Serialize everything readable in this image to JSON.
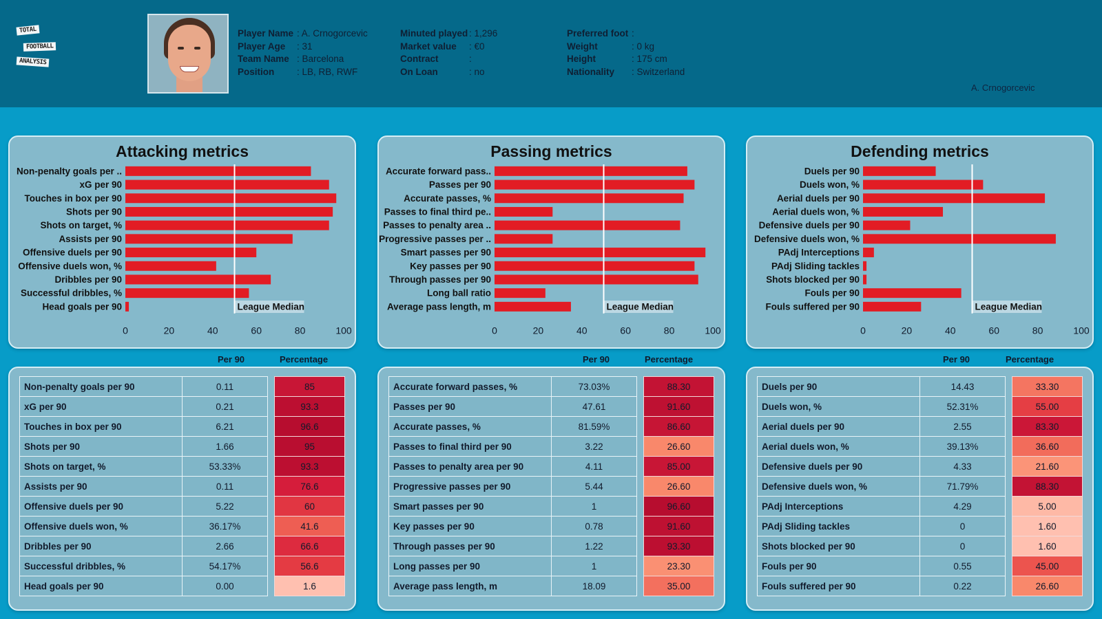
{
  "header": {
    "logo": {
      "lines": [
        "TOTAL",
        "FOOTBALL",
        "ANALYSIS"
      ]
    },
    "player_col1": [
      {
        "label": "Player Name",
        "value": ": A. Crnogorcevic"
      },
      {
        "label": "Player Age",
        "value": ": 31"
      },
      {
        "label": "Team Name",
        "value": ": Barcelona"
      },
      {
        "label": "Position",
        "value": ": LB, RB, RWF"
      }
    ],
    "player_col2": [
      {
        "label": "Minuted played",
        "value": ": 1,296"
      },
      {
        "label": "Market value",
        "value": ": €0"
      },
      {
        "label": "Contract",
        "value": ":"
      },
      {
        "label": "On Loan",
        "value": ": no"
      }
    ],
    "player_col3": [
      {
        "label": "Preferred foot",
        "value": ":"
      },
      {
        "label": "Weight",
        "value": ": 0 kg"
      },
      {
        "label": "Height",
        "value": ": 175 cm"
      },
      {
        "label": "Nationality",
        "value": ": Switzerland"
      }
    ],
    "player_tag": "A. Crnogorcevic"
  },
  "colors": {
    "bar": "#e21c24",
    "median_line": "#ffffff",
    "panel_bg": "#85b9cb",
    "header_bg": "#05698a",
    "page_bg": "#079cc8"
  },
  "table_headers": {
    "per90": "Per 90",
    "percentage": "Percentage"
  },
  "chart_data": [
    {
      "type": "bar",
      "orientation": "horizontal",
      "title": "Attacking metrics",
      "categories": [
        "Non-penalty goals per ..",
        "xG per 90",
        "Touches in box per 90",
        "Shots per 90",
        "Shots on target, %",
        "Assists per 90",
        "Offensive duels per 90",
        "Offensive duels won, %",
        "Dribbles per 90",
        "Successful dribbles, %",
        "Head goals per 90"
      ],
      "values": [
        85,
        93.3,
        96.6,
        95,
        93.3,
        76.6,
        60,
        41.6,
        66.6,
        56.6,
        1.6
      ],
      "xlim": [
        0,
        100
      ],
      "xticks": [
        0,
        20,
        40,
        60,
        80,
        100
      ],
      "reference_line": {
        "value": 50,
        "label": "League Median"
      },
      "xlabel": "",
      "ylabel": ""
    },
    {
      "type": "bar",
      "orientation": "horizontal",
      "title": "Passing metrics",
      "categories": [
        "Accurate forward pass..",
        "Passes per 90",
        "Accurate passes, %",
        "Passes to final third pe..",
        "Passes to penalty area ..",
        "Progressive passes per ..",
        "Smart passes per 90",
        "Key passes per 90",
        "Through passes per 90",
        "Long ball ratio",
        "Average pass length, m"
      ],
      "values": [
        88.3,
        91.6,
        86.6,
        26.6,
        85.0,
        26.6,
        96.6,
        91.6,
        93.3,
        23.3,
        35.0
      ],
      "xlim": [
        0,
        100
      ],
      "xticks": [
        0,
        20,
        40,
        60,
        80,
        100
      ],
      "reference_line": {
        "value": 50,
        "label": "League Median"
      },
      "xlabel": "",
      "ylabel": ""
    },
    {
      "type": "bar",
      "orientation": "horizontal",
      "title": "Defending metrics",
      "categories": [
        "Duels per 90",
        "Duels won, %",
        "Aerial duels per 90",
        "Aerial duels won, %",
        "Defensive duels per 90",
        "Defensive duels won, %",
        "PAdj Interceptions",
        "PAdj Sliding tackles",
        "Shots blocked per 90",
        "Fouls per 90",
        "Fouls suffered per 90"
      ],
      "values": [
        33.3,
        55.0,
        83.3,
        36.6,
        21.6,
        88.3,
        5.0,
        1.6,
        1.6,
        45.0,
        26.6
      ],
      "xlim": [
        0,
        100
      ],
      "xticks": [
        0,
        20,
        40,
        60,
        80,
        100
      ],
      "reference_line": {
        "value": 50,
        "label": "League Median"
      },
      "xlabel": "",
      "ylabel": ""
    }
  ],
  "tables": [
    {
      "rows": [
        {
          "name": "Non-penalty goals per 90",
          "per90": "0.11",
          "pct": "85",
          "pct_value": 85
        },
        {
          "name": "xG per 90",
          "per90": "0.21",
          "pct": "93.3",
          "pct_value": 93.3
        },
        {
          "name": "Touches in box per 90",
          "per90": "6.21",
          "pct": "96.6",
          "pct_value": 96.6
        },
        {
          "name": "Shots per 90",
          "per90": "1.66",
          "pct": "95",
          "pct_value": 95
        },
        {
          "name": "Shots on target, %",
          "per90": "53.33%",
          "pct": "93.3",
          "pct_value": 93.3
        },
        {
          "name": "Assists per 90",
          "per90": "0.11",
          "pct": "76.6",
          "pct_value": 76.6
        },
        {
          "name": "Offensive duels per 90",
          "per90": "5.22",
          "pct": "60",
          "pct_value": 60
        },
        {
          "name": "Offensive duels won, %",
          "per90": "36.17%",
          "pct": "41.6",
          "pct_value": 41.6
        },
        {
          "name": "Dribbles per 90",
          "per90": "2.66",
          "pct": "66.6",
          "pct_value": 66.6
        },
        {
          "name": "Successful dribbles, %",
          "per90": "54.17%",
          "pct": "56.6",
          "pct_value": 56.6
        },
        {
          "name": "Head goals per 90",
          "per90": "0.00",
          "pct": "1.6",
          "pct_value": 1.6
        }
      ]
    },
    {
      "rows": [
        {
          "name": "Accurate forward passes, %",
          "per90": "73.03%",
          "pct": "88.30",
          "pct_value": 88.3
        },
        {
          "name": "Passes per 90",
          "per90": "47.61",
          "pct": "91.60",
          "pct_value": 91.6
        },
        {
          "name": "Accurate passes, %",
          "per90": "81.59%",
          "pct": "86.60",
          "pct_value": 86.6
        },
        {
          "name": "Passes to final third per 90",
          "per90": "3.22",
          "pct": "26.60",
          "pct_value": 26.6
        },
        {
          "name": "Passes to penalty area per 90",
          "per90": "4.11",
          "pct": "85.00",
          "pct_value": 85.0
        },
        {
          "name": "Progressive passes per 90",
          "per90": "5.44",
          "pct": "26.60",
          "pct_value": 26.6
        },
        {
          "name": "Smart passes per 90",
          "per90": "1",
          "pct": "96.60",
          "pct_value": 96.6
        },
        {
          "name": "Key passes per 90",
          "per90": "0.78",
          "pct": "91.60",
          "pct_value": 91.6
        },
        {
          "name": "Through passes per 90",
          "per90": "1.22",
          "pct": "93.30",
          "pct_value": 93.3
        },
        {
          "name": "Long passes per 90",
          "per90": "1",
          "pct": "23.30",
          "pct_value": 23.3
        },
        {
          "name": "Average pass length, m",
          "per90": "18.09",
          "pct": "35.00",
          "pct_value": 35.0
        }
      ]
    },
    {
      "rows": [
        {
          "name": "Duels per 90",
          "per90": "14.43",
          "pct": "33.30",
          "pct_value": 33.3
        },
        {
          "name": "Duels won, %",
          "per90": "52.31%",
          "pct": "55.00",
          "pct_value": 55.0
        },
        {
          "name": "Aerial duels per 90",
          "per90": "2.55",
          "pct": "83.30",
          "pct_value": 83.3
        },
        {
          "name": "Aerial duels won, %",
          "per90": "39.13%",
          "pct": "36.60",
          "pct_value": 36.6
        },
        {
          "name": "Defensive duels per 90",
          "per90": "4.33",
          "pct": "21.60",
          "pct_value": 21.6
        },
        {
          "name": "Defensive duels won, %",
          "per90": "71.79%",
          "pct": "88.30",
          "pct_value": 88.3
        },
        {
          "name": "PAdj Interceptions",
          "per90": "4.29",
          "pct": "5.00",
          "pct_value": 5.0
        },
        {
          "name": "PAdj Sliding tackles",
          "per90": "0",
          "pct": "1.60",
          "pct_value": 1.6
        },
        {
          "name": "Shots blocked per 90",
          "per90": "0",
          "pct": "1.60",
          "pct_value": 1.6
        },
        {
          "name": "Fouls per 90",
          "per90": "0.55",
          "pct": "45.00",
          "pct_value": 45.0
        },
        {
          "name": "Fouls suffered per 90",
          "per90": "0.22",
          "pct": "26.60",
          "pct_value": 26.6
        }
      ]
    }
  ]
}
